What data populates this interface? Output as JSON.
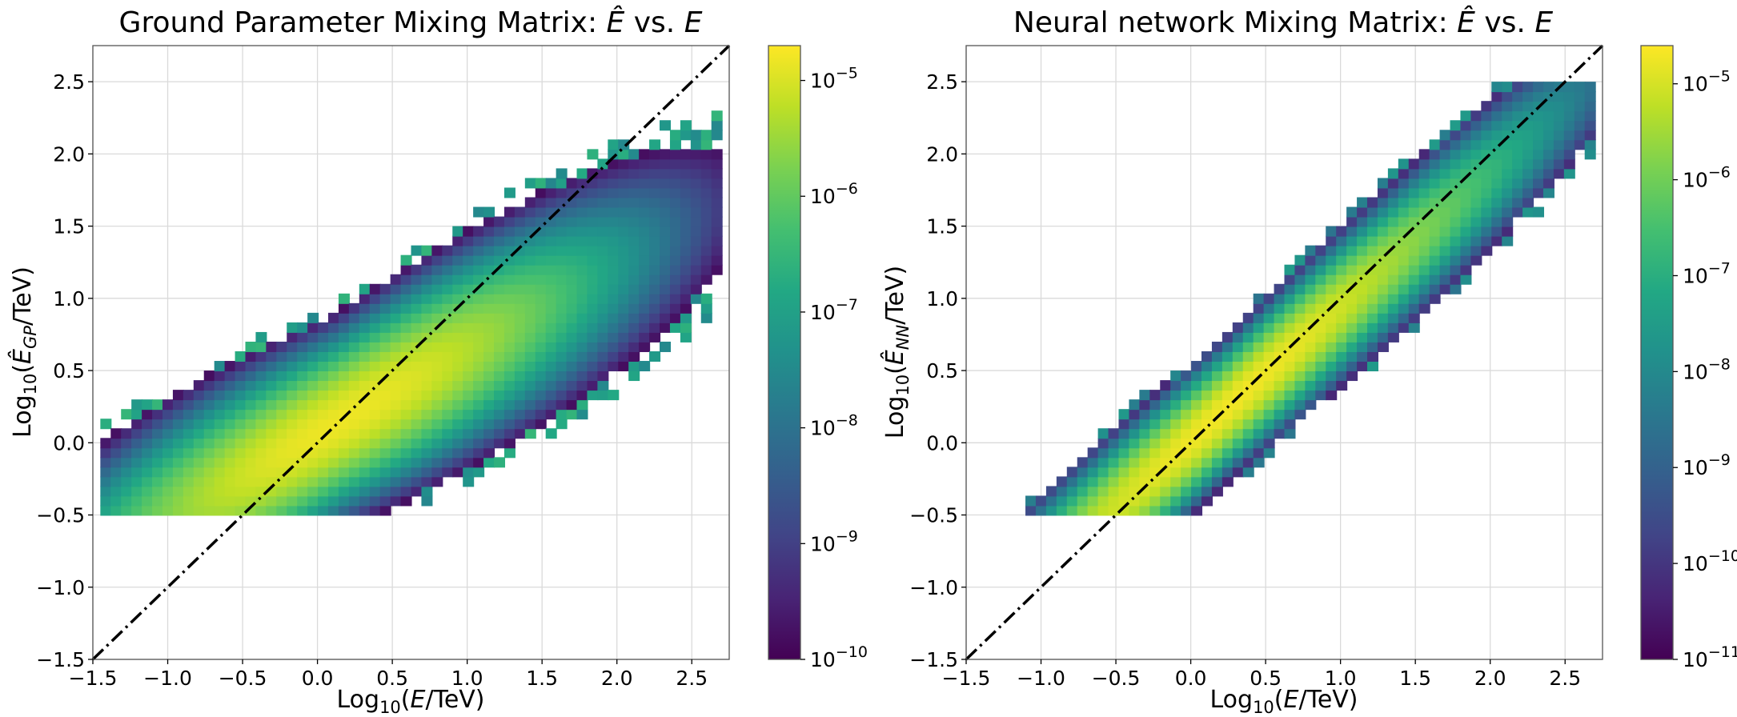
{
  "figure": {
    "plots": [
      {
        "title": "Ground Parameter Mixing Matrix: Ê vs. E",
        "xlabel": "Log10(E/TeV)",
        "ylabel": "Log10(Ê_GP/TeV)"
      },
      {
        "title": "Neural network Mixing Matrix: Ê vs. E",
        "xlabel": "Log10(E/TeV)",
        "ylabel": "Log10(Ê_NN/TeV)"
      }
    ]
  },
  "colors": {
    "colormap": "viridis",
    "diagonal_line": "#000000",
    "grid": "#dadada"
  },
  "chart_data": [
    {
      "type": "heatmap",
      "title": "Ground Parameter Mixing Matrix: Ê vs. E",
      "xlabel": "Log10(E/TeV)",
      "ylabel": "Log10(Ê_GP/TeV)",
      "xlim": [
        -1.5,
        2.75
      ],
      "ylim": [
        -1.5,
        2.75
      ],
      "xticks": [
        -1.5,
        -1.0,
        -0.5,
        0.0,
        0.5,
        1.0,
        1.5,
        2.0,
        2.5
      ],
      "yticks": [
        -1.5,
        -1.0,
        -0.5,
        0.0,
        0.5,
        1.0,
        1.5,
        2.0,
        2.5
      ],
      "xtick_labels": [
        "−1.5",
        "−1.0",
        "−0.5",
        "0.0",
        "0.5",
        "1.0",
        "1.5",
        "2.0",
        "2.5"
      ],
      "ytick_labels": [
        "−1.5",
        "−1.0",
        "−0.5",
        "0.0",
        "0.5",
        "1.0",
        "1.5",
        "2.0",
        "2.5"
      ],
      "grid": true,
      "bin_edges_x": [
        -1.45,
        2.7
      ],
      "bin_edges_y": [
        -0.5,
        2.5
      ],
      "n_bins": 60,
      "distribution": {
        "peak_x": 0.15,
        "peak_y": 0.15,
        "relation": "Ê ≈ 0.58·(E − 0.15) + 0.15",
        "width": 0.35,
        "peak_value": 1.5e-05
      },
      "reference_line": {
        "label": "y = x",
        "style": "dash-dot",
        "x": [
          -1.5,
          2.75
        ],
        "y": [
          -1.5,
          2.75
        ]
      },
      "colorbar": {
        "scale": "log",
        "min": 1e-10,
        "max": 2e-05,
        "ticks": [
          1e-10,
          1e-09,
          1e-08,
          1e-07,
          1e-06,
          1e-05
        ],
        "tick_labels": [
          {
            "base": "10",
            "exp": "−10"
          },
          {
            "base": "10",
            "exp": "−9"
          },
          {
            "base": "10",
            "exp": "−8"
          },
          {
            "base": "10",
            "exp": "−7"
          },
          {
            "base": "10",
            "exp": "−6"
          },
          {
            "base": "10",
            "exp": "−5"
          }
        ]
      }
    },
    {
      "type": "heatmap",
      "title": "Neural network Mixing Matrix: Ê vs. E",
      "xlabel": "Log10(E/TeV)",
      "ylabel": "Log10(Ê_NN/TeV)",
      "xlim": [
        -1.5,
        2.75
      ],
      "ylim": [
        -1.5,
        2.75
      ],
      "xticks": [
        -1.5,
        -1.0,
        -0.5,
        0.0,
        0.5,
        1.0,
        1.5,
        2.0,
        2.5
      ],
      "yticks": [
        -1.5,
        -1.0,
        -0.5,
        0.0,
        0.5,
        1.0,
        1.5,
        2.0,
        2.5
      ],
      "xtick_labels": [
        "−1.5",
        "−1.0",
        "−0.5",
        "0.0",
        "0.5",
        "1.0",
        "1.5",
        "2.0",
        "2.5"
      ],
      "ytick_labels": [
        "−1.5",
        "−1.0",
        "−0.5",
        "0.0",
        "0.5",
        "1.0",
        "1.5",
        "2.0",
        "2.5"
      ],
      "grid": true,
      "bin_edges_x": [
        -1.45,
        2.7
      ],
      "bin_edges_y": [
        -0.5,
        2.5
      ],
      "n_bins": 60,
      "distribution": {
        "peak_x": 0.25,
        "peak_y": 0.25,
        "relation": "Ê ≈ 0.92·(E − 0.25) + 0.25",
        "width": 0.22,
        "peak_value": 2e-05
      },
      "reference_line": {
        "label": "y = x",
        "style": "dash-dot",
        "x": [
          -1.5,
          2.75
        ],
        "y": [
          -1.5,
          2.75
        ]
      },
      "colorbar": {
        "scale": "log",
        "min": 1e-11,
        "max": 2.5e-05,
        "ticks": [
          1e-11,
          1e-10,
          1e-09,
          1e-08,
          1e-07,
          1e-06,
          1e-05
        ],
        "tick_labels": [
          {
            "base": "10",
            "exp": "−11"
          },
          {
            "base": "10",
            "exp": "−10"
          },
          {
            "base": "10",
            "exp": "−9"
          },
          {
            "base": "10",
            "exp": "−8"
          },
          {
            "base": "10",
            "exp": "−7"
          },
          {
            "base": "10",
            "exp": "−6"
          },
          {
            "base": "10",
            "exp": "−5"
          }
        ]
      }
    }
  ]
}
